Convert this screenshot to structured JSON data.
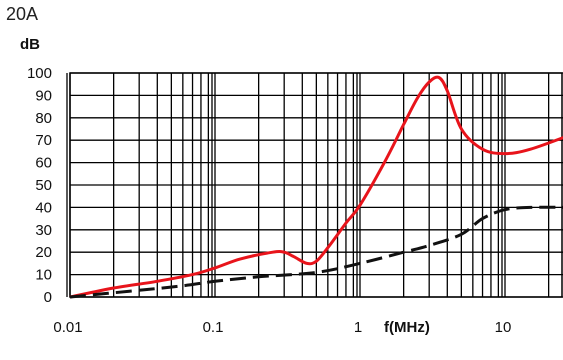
{
  "chart_data": {
    "type": "line",
    "title": "20A",
    "xlabel": "f(MHz)",
    "ylabel": "dB",
    "x_scale": "log",
    "xlim": [
      0.01,
      30
    ],
    "ylim": [
      0,
      100
    ],
    "grid": true,
    "x_tick_labels": [
      "0.01",
      "0.1",
      "1",
      "10"
    ],
    "x_tick_values": [
      0.01,
      0.1,
      1,
      10
    ],
    "y_tick_values": [
      0,
      10,
      20,
      30,
      40,
      50,
      60,
      70,
      80,
      90,
      100
    ],
    "series": [
      {
        "color": "#e8141b",
        "style": "solid",
        "points": [
          [
            0.01,
            0
          ],
          [
            0.02,
            4
          ],
          [
            0.04,
            7
          ],
          [
            0.07,
            10
          ],
          [
            0.1,
            13
          ],
          [
            0.15,
            17
          ],
          [
            0.25,
            20
          ],
          [
            0.3,
            20
          ],
          [
            0.35,
            18
          ],
          [
            0.43,
            15
          ],
          [
            0.5,
            16
          ],
          [
            0.6,
            22
          ],
          [
            0.8,
            33
          ],
          [
            1.0,
            41
          ],
          [
            1.5,
            61
          ],
          [
            2.0,
            77
          ],
          [
            2.5,
            89
          ],
          [
            3.0,
            96
          ],
          [
            3.5,
            98
          ],
          [
            4.0,
            92
          ],
          [
            5.0,
            75
          ],
          [
            7.0,
            66
          ],
          [
            10.0,
            64
          ],
          [
            15.0,
            66
          ],
          [
            30.0,
            73
          ]
        ]
      },
      {
        "color": "#111111",
        "style": "dashed",
        "points": [
          [
            0.01,
            0
          ],
          [
            0.03,
            3
          ],
          [
            0.06,
            5
          ],
          [
            0.1,
            7
          ],
          [
            0.2,
            9
          ],
          [
            0.5,
            11
          ],
          [
            1.0,
            15
          ],
          [
            2.0,
            20
          ],
          [
            3.0,
            23
          ],
          [
            5.0,
            28
          ],
          [
            7.0,
            35
          ],
          [
            10.0,
            39
          ],
          [
            15.0,
            40
          ],
          [
            30.0,
            40
          ]
        ]
      }
    ]
  }
}
